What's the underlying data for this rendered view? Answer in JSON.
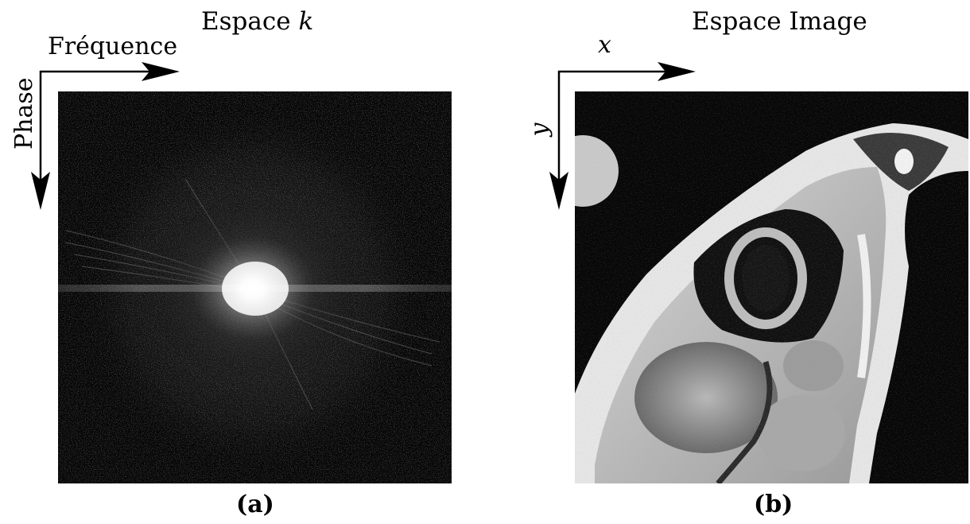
{
  "panel_a": {
    "title_prefix": "Espace ",
    "title_var": "k",
    "horizontal_axis_label": "Fréquence",
    "vertical_axis_label": "Phase",
    "caption": "(a)"
  },
  "panel_b": {
    "title": "Espace Image",
    "horizontal_axis_label": "x",
    "vertical_axis_label": "y",
    "caption": "(b)"
  },
  "colors": {
    "background": "#ffffff",
    "ink": "#000000",
    "image_background": "#050505"
  }
}
